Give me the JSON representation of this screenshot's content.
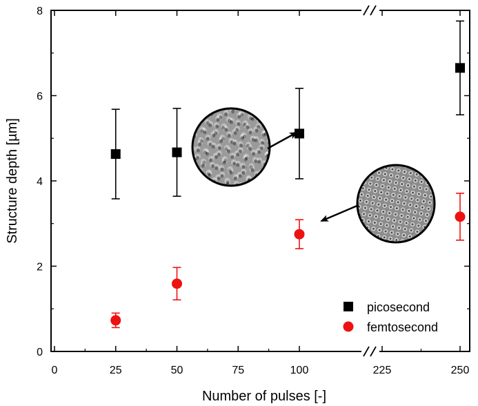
{
  "chart_data": {
    "type": "scatter",
    "title": "",
    "xlabel": "Number of pulses [-]",
    "ylabel": "Structure depth [µm]",
    "xlim": [
      0,
      250
    ],
    "ylim": [
      0,
      8
    ],
    "x_axis_break": {
      "from": 100,
      "to": 225
    },
    "xticks": [
      0,
      25,
      50,
      75,
      100,
      225,
      250
    ],
    "yticks": [
      0,
      2,
      4,
      6,
      8
    ],
    "legend_position": "bottom-right",
    "grid": false,
    "series": [
      {
        "name": "picosecond",
        "marker": "square",
        "color": "#000000",
        "x": [
          25,
          50,
          100,
          250
        ],
        "y": [
          4.63,
          4.67,
          5.11,
          6.65
        ],
        "err": [
          1.05,
          1.03,
          1.06,
          1.1
        ]
      },
      {
        "name": "femtosecond",
        "marker": "circle",
        "color": "#ee1111",
        "x": [
          25,
          50,
          100,
          250
        ],
        "y": [
          0.73,
          1.59,
          2.75,
          3.16
        ],
        "err": [
          0.17,
          0.38,
          0.34,
          0.55
        ]
      }
    ],
    "insets": [
      {
        "name": "picosecond-surface-inset",
        "points_to": {
          "x": 100,
          "y": 5.11
        }
      },
      {
        "name": "femtosecond-surface-inset",
        "points_to": {
          "x": 100,
          "y": 2.75
        }
      }
    ]
  }
}
